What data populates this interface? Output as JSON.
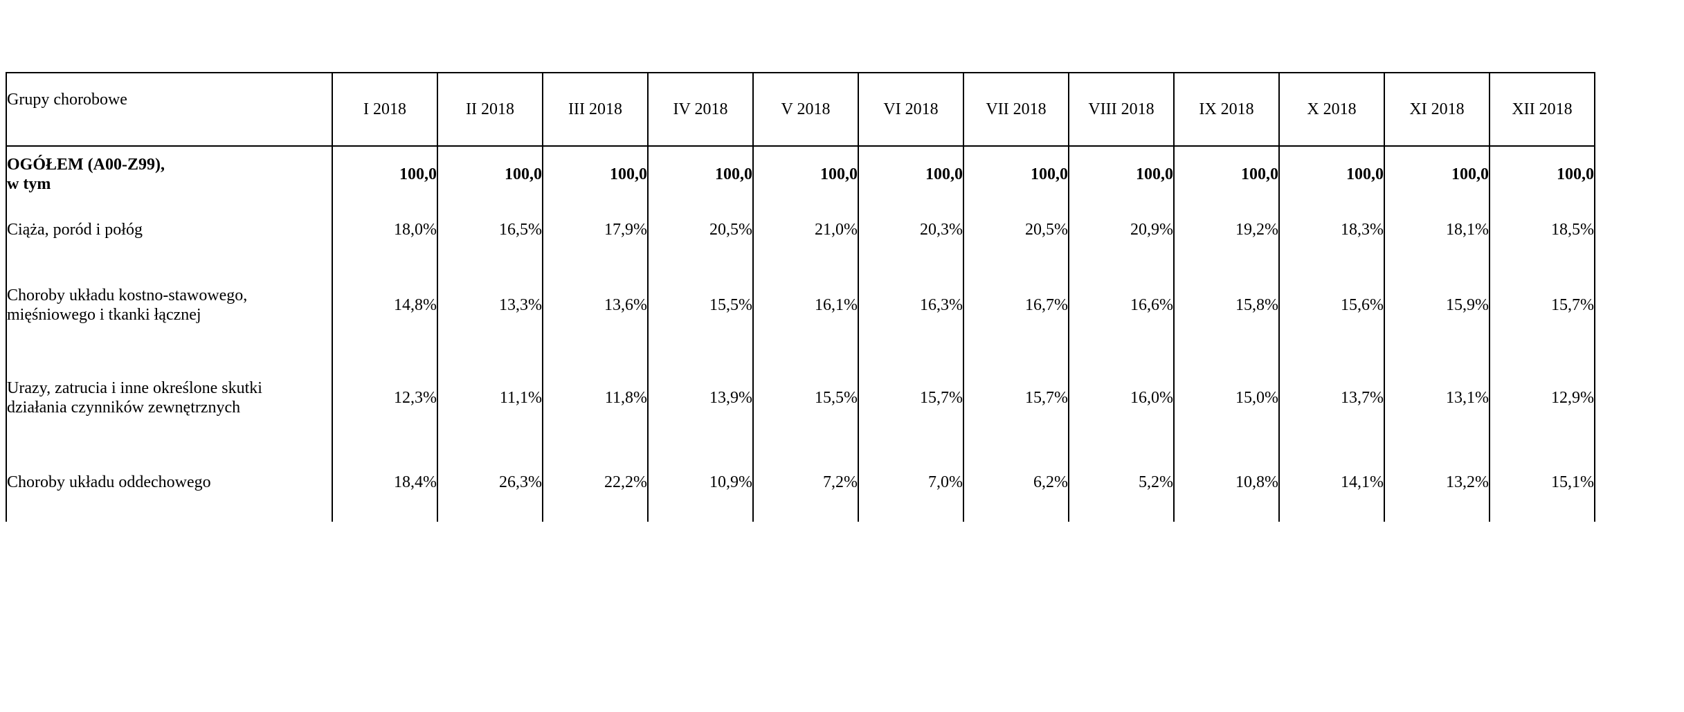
{
  "table": {
    "header_first": "Grupy chorobowe",
    "months": [
      "I 2018",
      "II 2018",
      "III 2018",
      "IV 2018",
      "V 2018",
      "VI 2018",
      "VII 2018",
      "VIII 2018",
      "IX 2018",
      "X 2018",
      "XI 2018",
      "XII 2018"
    ],
    "rows": [
      {
        "label": "OGÓŁEM (A00-Z99),\nw tym",
        "values": [
          "100,0",
          "100,0",
          "100,0",
          "100,0",
          "100,0",
          "100,0",
          "100,0",
          "100,0",
          "100,0",
          "100,0",
          "100,0",
          "100,0"
        ]
      },
      {
        "label": "Ciąża, poród i połóg",
        "values": [
          "18,0%",
          "16,5%",
          "17,9%",
          "20,5%",
          "21,0%",
          "20,3%",
          "20,5%",
          "20,9%",
          "19,2%",
          "18,3%",
          "18,1%",
          "18,5%"
        ]
      },
      {
        "label": "Choroby układu kostno-stawowego,\nmięśniowego i tkanki łącznej",
        "values": [
          "14,8%",
          "13,3%",
          "13,6%",
          "15,5%",
          "16,1%",
          "16,3%",
          "16,7%",
          "16,6%",
          "15,8%",
          "15,6%",
          "15,9%",
          "15,7%"
        ]
      },
      {
        "label": "Urazy, zatrucia i inne określone skutki\ndziałania czynników zewnętrznych",
        "values": [
          "12,3%",
          "11,1%",
          "11,8%",
          "13,9%",
          "15,5%",
          "15,7%",
          "15,7%",
          "16,0%",
          "15,0%",
          "13,7%",
          "13,1%",
          "12,9%"
        ]
      },
      {
        "label": "Choroby układu oddechowego",
        "values": [
          "18,4%",
          "26,3%",
          "22,2%",
          "10,9%",
          "7,2%",
          "7,0%",
          "6,2%",
          "5,2%",
          "10,8%",
          "14,1%",
          "13,2%",
          "15,1%"
        ]
      }
    ]
  }
}
